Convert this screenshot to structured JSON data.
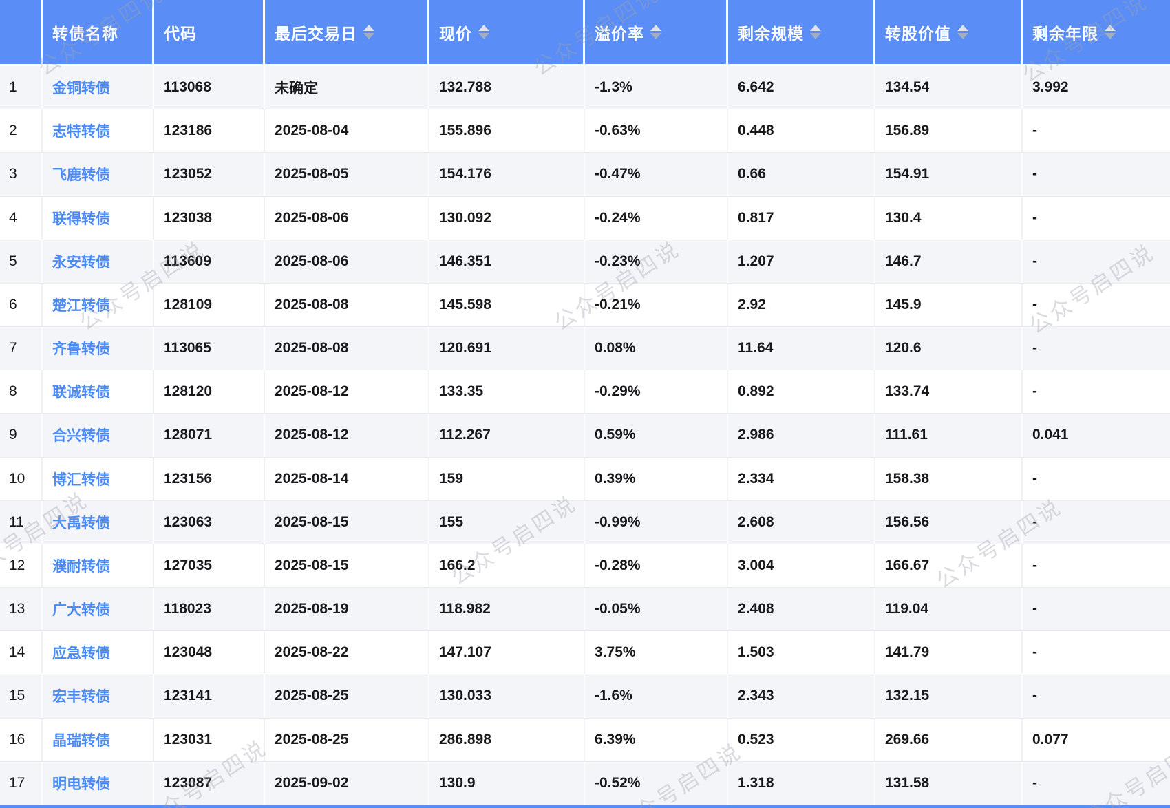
{
  "watermark": {
    "text": "公众号启四说"
  },
  "colors": {
    "header_bg": "#5a8df6",
    "link_blue": "#4a8bf7",
    "stripe_bg": "#f4f5f8",
    "bottom_bar": "#5a8df6",
    "sort_caret_up": "#dfe3e8",
    "sort_caret_down": "#a2aebf"
  },
  "table": {
    "columns": [
      {
        "label": "",
        "sortable": false
      },
      {
        "label": "转债名称",
        "sortable": false
      },
      {
        "label": "代码",
        "sortable": false
      },
      {
        "label": "最后交易日",
        "sortable": true
      },
      {
        "label": "现价",
        "sortable": true
      },
      {
        "label": "溢价率",
        "sortable": true
      },
      {
        "label": "剩余规模",
        "sortable": true
      },
      {
        "label": "转股价值",
        "sortable": true
      },
      {
        "label": "剩余年限",
        "sortable": true
      }
    ],
    "rows": [
      {
        "index": "1",
        "name": "金铜转债",
        "code": "113068",
        "last_trade_date": "未确定",
        "price": "132.788",
        "premium_rate": "-1.3%",
        "remaining_size": "6.642",
        "conversion_value": "134.54",
        "remaining_years": "3.992"
      },
      {
        "index": "2",
        "name": "志特转债",
        "code": "123186",
        "last_trade_date": "2025-08-04",
        "price": "155.896",
        "premium_rate": "-0.63%",
        "remaining_size": "0.448",
        "conversion_value": "156.89",
        "remaining_years": "-"
      },
      {
        "index": "3",
        "name": "飞鹿转债",
        "code": "123052",
        "last_trade_date": "2025-08-05",
        "price": "154.176",
        "premium_rate": "-0.47%",
        "remaining_size": "0.66",
        "conversion_value": "154.91",
        "remaining_years": "-"
      },
      {
        "index": "4",
        "name": "联得转债",
        "code": "123038",
        "last_trade_date": "2025-08-06",
        "price": "130.092",
        "premium_rate": "-0.24%",
        "remaining_size": "0.817",
        "conversion_value": "130.4",
        "remaining_years": "-"
      },
      {
        "index": "5",
        "name": "永安转债",
        "code": "113609",
        "last_trade_date": "2025-08-06",
        "price": "146.351",
        "premium_rate": "-0.23%",
        "remaining_size": "1.207",
        "conversion_value": "146.7",
        "remaining_years": "-"
      },
      {
        "index": "6",
        "name": "楚江转债",
        "code": "128109",
        "last_trade_date": "2025-08-08",
        "price": "145.598",
        "premium_rate": "-0.21%",
        "remaining_size": "2.92",
        "conversion_value": "145.9",
        "remaining_years": "-"
      },
      {
        "index": "7",
        "name": "齐鲁转债",
        "code": "113065",
        "last_trade_date": "2025-08-08",
        "price": "120.691",
        "premium_rate": "0.08%",
        "remaining_size": "11.64",
        "conversion_value": "120.6",
        "remaining_years": "-"
      },
      {
        "index": "8",
        "name": "联诚转债",
        "code": "128120",
        "last_trade_date": "2025-08-12",
        "price": "133.35",
        "premium_rate": "-0.29%",
        "remaining_size": "0.892",
        "conversion_value": "133.74",
        "remaining_years": "-"
      },
      {
        "index": "9",
        "name": "合兴转债",
        "code": "128071",
        "last_trade_date": "2025-08-12",
        "price": "112.267",
        "premium_rate": "0.59%",
        "remaining_size": "2.986",
        "conversion_value": "111.61",
        "remaining_years": "0.041"
      },
      {
        "index": "10",
        "name": "博汇转债",
        "code": "123156",
        "last_trade_date": "2025-08-14",
        "price": "159",
        "premium_rate": "0.39%",
        "remaining_size": "2.334",
        "conversion_value": "158.38",
        "remaining_years": "-"
      },
      {
        "index": "11",
        "name": "大禹转债",
        "code": "123063",
        "last_trade_date": "2025-08-15",
        "price": "155",
        "premium_rate": "-0.99%",
        "remaining_size": "2.608",
        "conversion_value": "156.56",
        "remaining_years": "-"
      },
      {
        "index": "12",
        "name": "濮耐转债",
        "code": "127035",
        "last_trade_date": "2025-08-15",
        "price": "166.2",
        "premium_rate": "-0.28%",
        "remaining_size": "3.004",
        "conversion_value": "166.67",
        "remaining_years": "-"
      },
      {
        "index": "13",
        "name": "广大转债",
        "code": "118023",
        "last_trade_date": "2025-08-19",
        "price": "118.982",
        "premium_rate": "-0.05%",
        "remaining_size": "2.408",
        "conversion_value": "119.04",
        "remaining_years": "-"
      },
      {
        "index": "14",
        "name": "应急转债",
        "code": "123048",
        "last_trade_date": "2025-08-22",
        "price": "147.107",
        "premium_rate": "3.75%",
        "remaining_size": "1.503",
        "conversion_value": "141.79",
        "remaining_years": "-"
      },
      {
        "index": "15",
        "name": "宏丰转债",
        "code": "123141",
        "last_trade_date": "2025-08-25",
        "price": "130.033",
        "premium_rate": "-1.6%",
        "remaining_size": "2.343",
        "conversion_value": "132.15",
        "remaining_years": "-"
      },
      {
        "index": "16",
        "name": "晶瑞转债",
        "code": "123031",
        "last_trade_date": "2025-08-25",
        "price": "286.898",
        "premium_rate": "6.39%",
        "remaining_size": "0.523",
        "conversion_value": "269.66",
        "remaining_years": "0.077"
      },
      {
        "index": "17",
        "name": "明电转债",
        "code": "123087",
        "last_trade_date": "2025-09-02",
        "price": "130.9",
        "premium_rate": "-0.52%",
        "remaining_size": "1.318",
        "conversion_value": "131.58",
        "remaining_years": "-"
      }
    ]
  }
}
